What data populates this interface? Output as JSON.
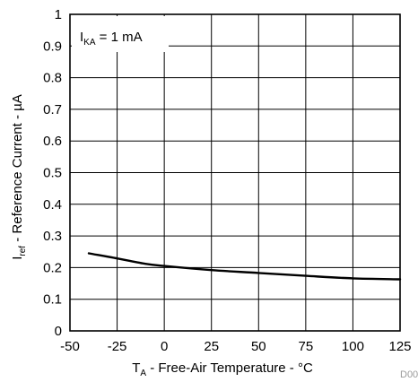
{
  "chart_data": {
    "type": "line",
    "figure_id": "D00",
    "xlabel": {
      "symbol": "T",
      "sub": "A",
      "text": " - Free-Air Temperature - °C"
    },
    "ylabel": {
      "symbol": "I",
      "sub": "ref",
      "text": " - Reference Current - µA"
    },
    "xlim": [
      -50,
      125
    ],
    "ylim": [
      0,
      1
    ],
    "xticks": [
      -50,
      -25,
      0,
      25,
      50,
      75,
      100,
      125
    ],
    "xtick_labels": [
      "-50",
      "-25",
      "0",
      "25",
      "50",
      "75",
      "100",
      "125"
    ],
    "yticks": [
      0,
      0.1,
      0.2,
      0.3,
      0.4,
      0.5,
      0.6,
      0.7,
      0.8,
      0.9,
      1
    ],
    "ytick_labels": [
      "0",
      "0.1",
      "0.2",
      "0.3",
      "0.4",
      "0.5",
      "0.6",
      "0.7",
      "0.8",
      "0.9",
      "1"
    ],
    "grid": true,
    "annotation": {
      "symbol": "I",
      "sub": "KA",
      "text": " = 1 mA"
    },
    "series": [
      {
        "x": [
          -40,
          -25,
          -10,
          0,
          25,
          50,
          75,
          100,
          125
        ],
        "values": [
          0.245,
          0.229,
          0.212,
          0.205,
          0.192,
          0.183,
          0.174,
          0.166,
          0.163
        ]
      }
    ]
  }
}
